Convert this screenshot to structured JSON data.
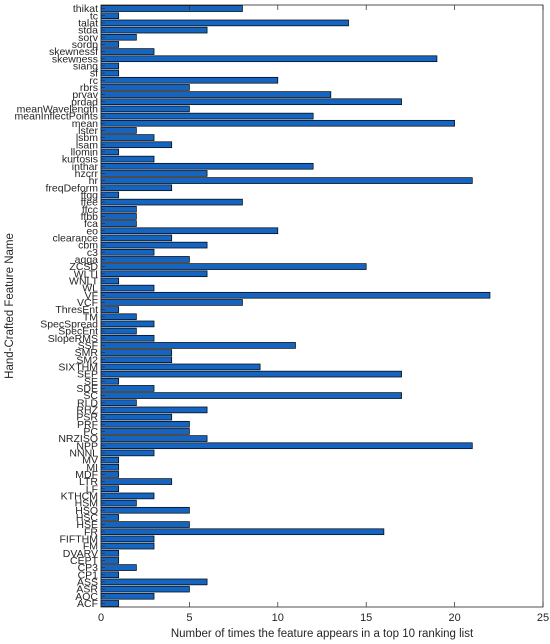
{
  "chart_data": {
    "type": "bar",
    "orientation": "horizontal",
    "xlabel": "Number of times the feature appears in a top 10 ranking list",
    "ylabel": "Hand-Crafted Feature Name",
    "xlim": [
      0,
      25
    ],
    "xticks": [
      "0",
      "5",
      "10",
      "15",
      "20",
      "25"
    ],
    "grid": false,
    "bar_color": "#1565C0",
    "bar_edge_color": "#000000",
    "categories": [
      "thikat",
      "tc",
      "talat",
      "stda",
      "sorv",
      "sordp",
      "skewnessf",
      "skewness",
      "siang",
      "sf",
      "rc",
      "rbrs",
      "prvav",
      "prdad",
      "meanWavelength",
      "meanInflectPoints",
      "mean",
      "lster",
      "lsbm",
      "lsam",
      "llomin",
      "kurtosis",
      "inthar",
      "hzcrr",
      "hr",
      "freqDeform",
      "ffgg",
      "ffee",
      "ffcc",
      "ffbb",
      "fca",
      "eo",
      "clearance",
      "cbm",
      "c3",
      "aqga",
      "ZCSD",
      "WLTI",
      "WNLT",
      "WL",
      "VF",
      "VCF",
      "ThresEnt",
      "TM",
      "SpecSpread",
      "SpecEnt",
      "SlopeRMS",
      "SSF",
      "SMR",
      "SM2",
      "SIXTHM",
      "SEP",
      "SE",
      "SDE",
      "SC",
      "RLD",
      "RHZ",
      "PSR",
      "PRF",
      "PC",
      "NRZISO",
      "NPP",
      "NNNL",
      "MV",
      "MI",
      "MDF",
      "LTR",
      "LF",
      "KTHCM",
      "HSM",
      "HSO",
      "HSC",
      "HSE",
      "FR",
      "FIFTHM",
      "FM",
      "DVARV",
      "CEPT",
      "CP3",
      "CP1",
      "ASS",
      "ASR",
      "AOC",
      "ACF"
    ],
    "values": [
      8,
      1,
      14,
      6,
      2,
      1,
      3,
      19,
      1,
      1,
      10,
      5,
      13,
      17,
      5,
      12,
      20,
      2,
      3,
      4,
      1,
      3,
      12,
      6,
      21,
      4,
      1,
      8,
      2,
      2,
      2,
      10,
      4,
      6,
      3,
      5,
      15,
      6,
      1,
      3,
      22,
      8,
      1,
      2,
      3,
      2,
      3,
      11,
      4,
      4,
      9,
      17,
      1,
      3,
      17,
      2,
      6,
      4,
      5,
      5,
      6,
      21,
      3,
      1,
      1,
      1,
      4,
      1,
      3,
      2,
      5,
      1,
      5,
      16,
      3,
      3,
      1,
      1,
      2,
      1,
      6,
      5,
      3,
      1
    ]
  }
}
